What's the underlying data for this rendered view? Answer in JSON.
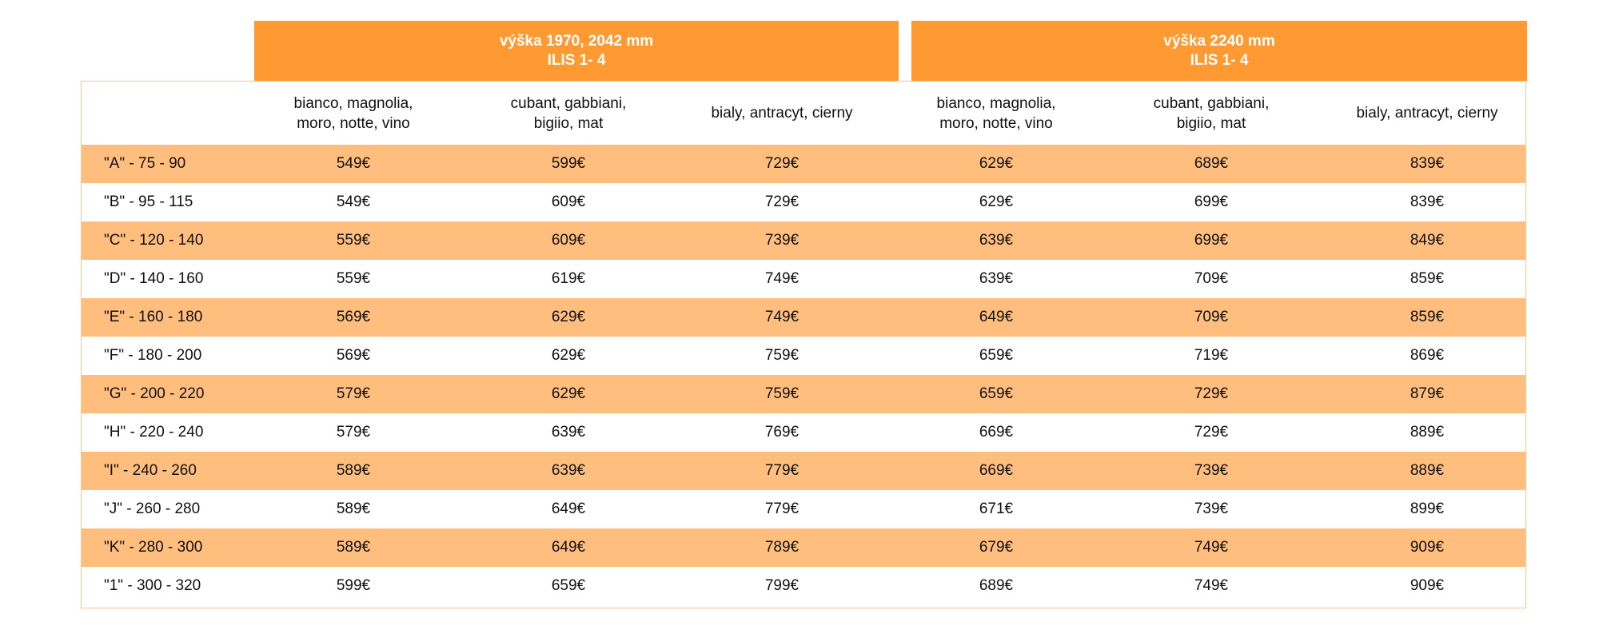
{
  "groups": [
    {
      "title": "výška 1970, 2042 mm",
      "subtitle": "ILIS 1- 4"
    },
    {
      "title": "výška 2240 mm",
      "subtitle": "ILIS 1- 4"
    }
  ],
  "columns": [
    {
      "line1": "bianco, magnolia,",
      "line2": "moro, notte, vino"
    },
    {
      "line1": "cubant, gabbiani,",
      "line2": "bigiio, mat"
    },
    {
      "line1": "bialy, antracyt, cierny",
      "line2": ""
    },
    {
      "line1": "bianco, magnolia,",
      "line2": "moro, notte, vino"
    },
    {
      "line1": "cubant, gabbiani,",
      "line2": "bigiio, mat"
    },
    {
      "line1": "bialy, antracyt, cierny",
      "line2": ""
    }
  ],
  "rows": [
    {
      "label": "\"A\" - 75 - 90",
      "prices": [
        "549€",
        "599€",
        "729€",
        "629€",
        "689€",
        "839€"
      ]
    },
    {
      "label": "\"B\" - 95 - 115",
      "prices": [
        "549€",
        "609€",
        "729€",
        "629€",
        "699€",
        "839€"
      ]
    },
    {
      "label": "\"C\" - 120 - 140",
      "prices": [
        "559€",
        "609€",
        "739€",
        "639€",
        "699€",
        "849€"
      ]
    },
    {
      "label": "\"D\" - 140 - 160",
      "prices": [
        "559€",
        "619€",
        "749€",
        "639€",
        "709€",
        "859€"
      ]
    },
    {
      "label": "\"E\" - 160 - 180",
      "prices": [
        "569€",
        "629€",
        "749€",
        "649€",
        "709€",
        "859€"
      ]
    },
    {
      "label": "\"F\" - 180 - 200",
      "prices": [
        "569€",
        "629€",
        "759€",
        "659€",
        "719€",
        "869€"
      ]
    },
    {
      "label": "\"G\" - 200 - 220",
      "prices": [
        "579€",
        "629€",
        "759€",
        "659€",
        "729€",
        "879€"
      ]
    },
    {
      "label": "\"H\" - 220 - 240",
      "prices": [
        "579€",
        "639€",
        "769€",
        "669€",
        "729€",
        "889€"
      ]
    },
    {
      "label": "\"I\" - 240 - 260",
      "prices": [
        "589€",
        "639€",
        "779€",
        "669€",
        "739€",
        "889€"
      ]
    },
    {
      "label": "\"J\" - 260 - 280",
      "prices": [
        "589€",
        "649€",
        "779€",
        "671€",
        "739€",
        "899€"
      ]
    },
    {
      "label": "\"K\" - 280 - 300",
      "prices": [
        "589€",
        "649€",
        "789€",
        "679€",
        "749€",
        "909€"
      ]
    },
    {
      "label": "\"1\" - 300 - 320",
      "prices": [
        "599€",
        "659€",
        "799€",
        "689€",
        "749€",
        "909€"
      ]
    }
  ],
  "colors": {
    "header_orange": "#ff9a33",
    "stripe_orange": "#ffbd7e",
    "border": "#ffc38c"
  }
}
